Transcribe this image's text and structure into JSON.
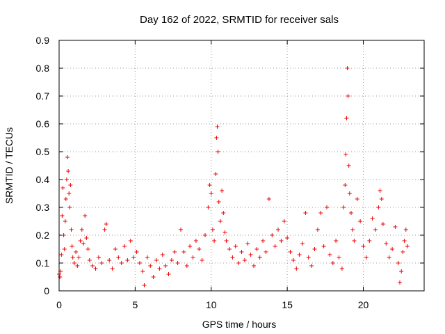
{
  "chart_data": {
    "type": "scatter",
    "title": "Day 162 of 2022, SRMTID for receiver sals",
    "xlabel": "GPS time / hours",
    "ylabel": "SRMTID / TECUs",
    "xlim": [
      0,
      24
    ],
    "ylim": [
      0,
      0.9
    ],
    "xticks": [
      0,
      5,
      10,
      15,
      20
    ],
    "xtick_labels": [
      "0",
      "5",
      "10",
      "15",
      "20"
    ],
    "yticks": [
      0,
      0.1,
      0.2,
      0.3,
      0.4,
      0.5,
      0.6,
      0.7,
      0.8,
      0.9
    ],
    "ytick_labels": [
      "0",
      "0.1",
      "0.2",
      "0.3",
      "0.4",
      "0.5",
      "0.6",
      "0.7",
      "0.8",
      "0.9"
    ],
    "grid": true,
    "marker": "+",
    "color": "#ee0000",
    "series": [
      {
        "name": "sals",
        "points": [
          [
            0.0,
            0.06
          ],
          [
            0.05,
            0.05
          ],
          [
            0.1,
            0.07
          ],
          [
            0.15,
            0.13
          ],
          [
            0.2,
            0.27
          ],
          [
            0.25,
            0.37
          ],
          [
            0.3,
            0.2
          ],
          [
            0.35,
            0.15
          ],
          [
            0.4,
            0.25
          ],
          [
            0.45,
            0.33
          ],
          [
            0.5,
            0.4
          ],
          [
            0.55,
            0.48
          ],
          [
            0.6,
            0.43
          ],
          [
            0.65,
            0.35
          ],
          [
            0.7,
            0.3
          ],
          [
            0.75,
            0.38
          ],
          [
            0.8,
            0.22
          ],
          [
            0.85,
            0.16
          ],
          [
            0.9,
            0.12
          ],
          [
            1.0,
            0.1
          ],
          [
            1.1,
            0.14
          ],
          [
            1.2,
            0.09
          ],
          [
            1.3,
            0.12
          ],
          [
            1.4,
            0.18
          ],
          [
            1.5,
            0.22
          ],
          [
            1.6,
            0.17
          ],
          [
            1.7,
            0.27
          ],
          [
            1.8,
            0.19
          ],
          [
            1.9,
            0.15
          ],
          [
            2.0,
            0.11
          ],
          [
            2.2,
            0.09
          ],
          [
            2.4,
            0.08
          ],
          [
            2.6,
            0.12
          ],
          [
            2.8,
            0.1
          ],
          [
            3.0,
            0.22
          ],
          [
            3.1,
            0.24
          ],
          [
            3.3,
            0.11
          ],
          [
            3.5,
            0.08
          ],
          [
            3.7,
            0.15
          ],
          [
            3.9,
            0.12
          ],
          [
            4.1,
            0.1
          ],
          [
            4.3,
            0.16
          ],
          [
            4.5,
            0.11
          ],
          [
            4.7,
            0.18
          ],
          [
            4.9,
            0.12
          ],
          [
            5.1,
            0.14
          ],
          [
            5.3,
            0.1
          ],
          [
            5.5,
            0.07
          ],
          [
            5.6,
            0.02
          ],
          [
            5.8,
            0.12
          ],
          [
            6.0,
            0.09
          ],
          [
            6.2,
            0.05
          ],
          [
            6.4,
            0.11
          ],
          [
            6.6,
            0.08
          ],
          [
            6.8,
            0.13
          ],
          [
            7.0,
            0.09
          ],
          [
            7.2,
            0.06
          ],
          [
            7.4,
            0.11
          ],
          [
            7.6,
            0.14
          ],
          [
            7.8,
            0.1
          ],
          [
            8.0,
            0.22
          ],
          [
            8.2,
            0.14
          ],
          [
            8.4,
            0.09
          ],
          [
            8.6,
            0.16
          ],
          [
            8.8,
            0.12
          ],
          [
            9.0,
            0.18
          ],
          [
            9.2,
            0.15
          ],
          [
            9.4,
            0.11
          ],
          [
            9.6,
            0.2
          ],
          [
            9.8,
            0.3
          ],
          [
            9.9,
            0.38
          ],
          [
            10.0,
            0.35
          ],
          [
            10.1,
            0.22
          ],
          [
            10.2,
            0.18
          ],
          [
            10.3,
            0.42
          ],
          [
            10.35,
            0.55
          ],
          [
            10.4,
            0.59
          ],
          [
            10.45,
            0.5
          ],
          [
            10.5,
            0.32
          ],
          [
            10.6,
            0.25
          ],
          [
            10.7,
            0.36
          ],
          [
            10.8,
            0.28
          ],
          [
            10.9,
            0.21
          ],
          [
            11.0,
            0.18
          ],
          [
            11.2,
            0.15
          ],
          [
            11.4,
            0.12
          ],
          [
            11.6,
            0.16
          ],
          [
            11.8,
            0.1
          ],
          [
            12.0,
            0.14
          ],
          [
            12.2,
            0.11
          ],
          [
            12.4,
            0.17
          ],
          [
            12.6,
            0.13
          ],
          [
            12.8,
            0.09
          ],
          [
            13.0,
            0.15
          ],
          [
            13.2,
            0.12
          ],
          [
            13.4,
            0.18
          ],
          [
            13.6,
            0.14
          ],
          [
            13.8,
            0.33
          ],
          [
            14.0,
            0.2
          ],
          [
            14.2,
            0.16
          ],
          [
            14.4,
            0.22
          ],
          [
            14.6,
            0.18
          ],
          [
            14.8,
            0.25
          ],
          [
            15.0,
            0.19
          ],
          [
            15.2,
            0.14
          ],
          [
            15.4,
            0.11
          ],
          [
            15.6,
            0.08
          ],
          [
            15.8,
            0.13
          ],
          [
            16.0,
            0.17
          ],
          [
            16.2,
            0.28
          ],
          [
            16.4,
            0.12
          ],
          [
            16.6,
            0.09
          ],
          [
            16.8,
            0.15
          ],
          [
            17.0,
            0.22
          ],
          [
            17.2,
            0.28
          ],
          [
            17.4,
            0.16
          ],
          [
            17.6,
            0.3
          ],
          [
            17.8,
            0.13
          ],
          [
            18.0,
            0.1
          ],
          [
            18.2,
            0.18
          ],
          [
            18.4,
            0.12
          ],
          [
            18.6,
            0.08
          ],
          [
            18.7,
            0.3
          ],
          [
            18.8,
            0.38
          ],
          [
            18.85,
            0.49
          ],
          [
            18.9,
            0.62
          ],
          [
            18.95,
            0.8
          ],
          [
            19.0,
            0.7
          ],
          [
            19.05,
            0.45
          ],
          [
            19.1,
            0.35
          ],
          [
            19.2,
            0.28
          ],
          [
            19.3,
            0.22
          ],
          [
            19.4,
            0.18
          ],
          [
            19.6,
            0.33
          ],
          [
            19.8,
            0.25
          ],
          [
            20.0,
            0.16
          ],
          [
            20.2,
            0.12
          ],
          [
            20.4,
            0.18
          ],
          [
            20.6,
            0.26
          ],
          [
            20.8,
            0.22
          ],
          [
            21.0,
            0.3
          ],
          [
            21.1,
            0.36
          ],
          [
            21.2,
            0.33
          ],
          [
            21.3,
            0.24
          ],
          [
            21.5,
            0.17
          ],
          [
            21.7,
            0.12
          ],
          [
            21.9,
            0.15
          ],
          [
            22.1,
            0.23
          ],
          [
            22.3,
            0.1
          ],
          [
            22.4,
            0.03
          ],
          [
            22.5,
            0.07
          ],
          [
            22.6,
            0.14
          ],
          [
            22.7,
            0.18
          ],
          [
            22.8,
            0.22
          ],
          [
            22.9,
            0.16
          ]
        ]
      }
    ]
  }
}
